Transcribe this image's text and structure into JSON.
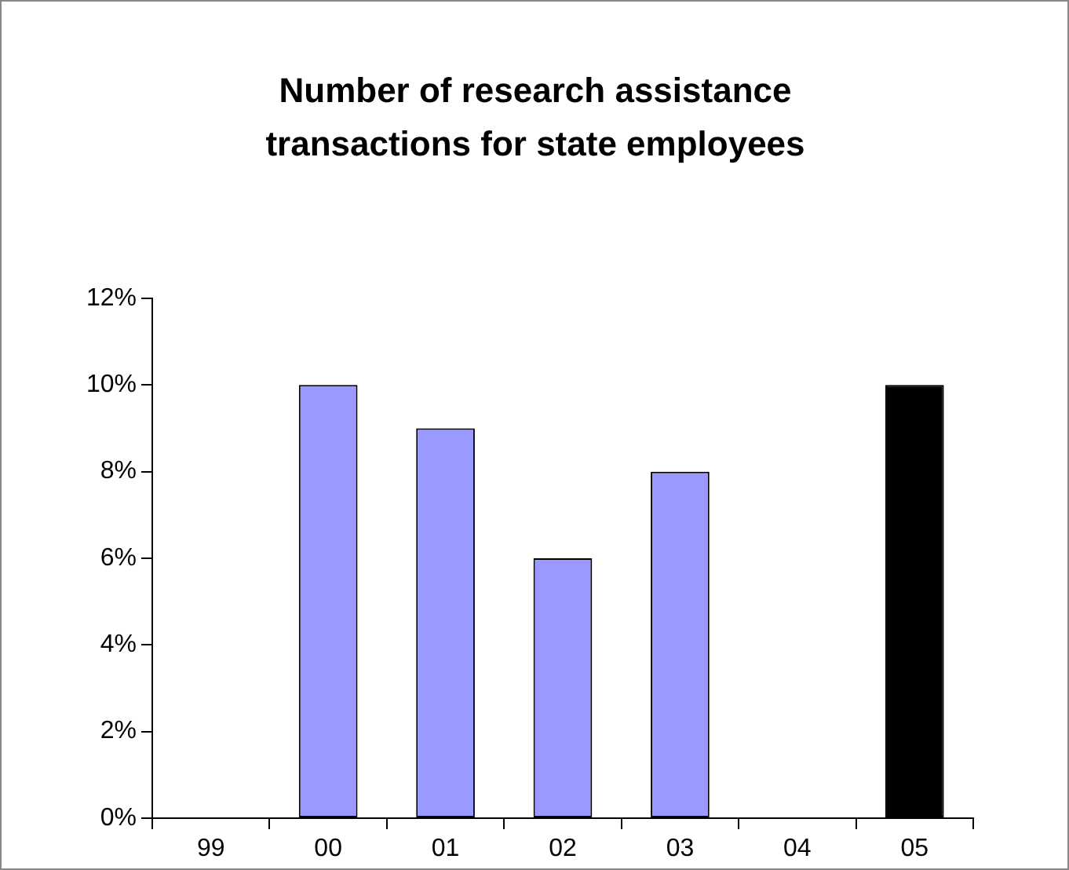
{
  "chart_data": {
    "type": "bar",
    "title": "Number of research assistance transactions for state employees",
    "categories": [
      "99",
      "00",
      "01",
      "02",
      "03",
      "04",
      "05"
    ],
    "values": [
      0,
      10,
      9,
      6,
      8,
      0,
      10
    ],
    "colors": [
      "#9999ff",
      "#9999ff",
      "#9999ff",
      "#9999ff",
      "#9999ff",
      "#9999ff",
      "#000000"
    ],
    "ylim": [
      0,
      12
    ],
    "yticks": [
      {
        "value": 0,
        "label": "0%"
      },
      {
        "value": 2,
        "label": "2%"
      },
      {
        "value": 4,
        "label": "4%"
      },
      {
        "value": 6,
        "label": "6%"
      },
      {
        "value": 8,
        "label": "8%"
      },
      {
        "value": 10,
        "label": "10%"
      },
      {
        "value": 12,
        "label": "12%"
      }
    ]
  }
}
